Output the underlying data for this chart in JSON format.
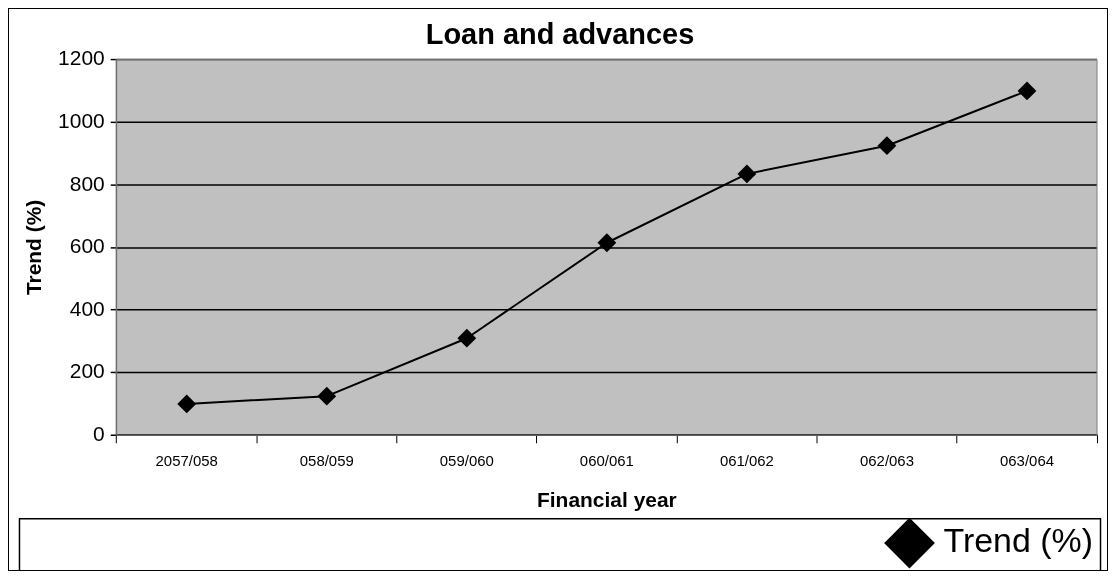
{
  "chart_data": {
    "type": "line",
    "title": "Loan and advances",
    "xlabel": "Financial year",
    "ylabel": "Trend (%)",
    "categories": [
      "2057/058",
      "058/059",
      "059/060",
      "060/061",
      "061/062",
      "062/063",
      "063/064"
    ],
    "series": [
      {
        "name": "Trend (%)",
        "color": "#000000",
        "values": [
          100,
          125,
          310,
          615,
          835,
          925,
          1100
        ]
      }
    ],
    "ylim": [
      0,
      1200
    ],
    "yticks": [
      0,
      200,
      400,
      600,
      800,
      1000,
      1200
    ],
    "grid": "y",
    "legend": "bottom right",
    "marker": "diamond",
    "line_style": "solid"
  }
}
